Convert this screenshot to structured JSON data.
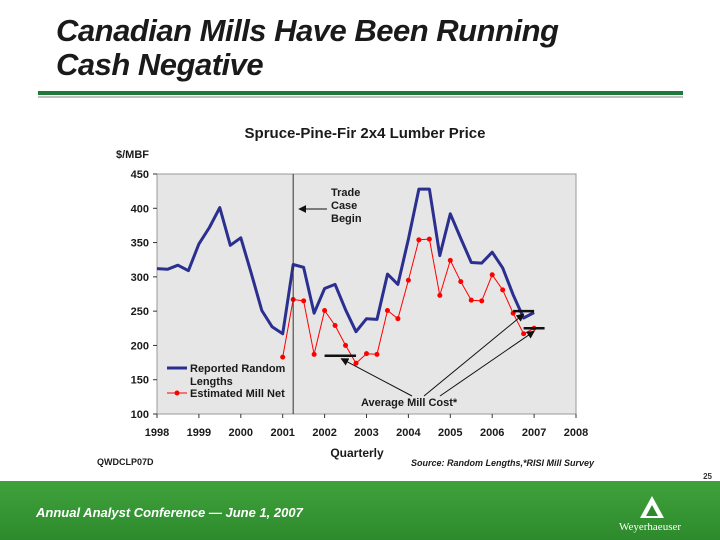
{
  "slide": {
    "title_line1": "Canadian Mills Have Been Running",
    "title_line2": "Cash Negative",
    "code": "QWDCLP07D",
    "source": "Source: Random Lengths,*RISI Mill Survey",
    "page_number": "25",
    "footer": "Annual Analyst Conference — June 1, 2007",
    "logo_text": "Weyerhaeuser",
    "colors": {
      "accent": "#2e8b2e",
      "series_reported": "#2b2f8f",
      "series_net": "#ff0000"
    }
  },
  "chart_data": {
    "type": "line",
    "title": "Spruce-Pine-Fir 2x4 Lumber Price",
    "ylabel": "$/MBF",
    "xlabel": "Quarterly",
    "ylim": [
      100,
      450
    ],
    "xlim": [
      1998,
      2008
    ],
    "yticks": [
      "100",
      "150",
      "200",
      "250",
      "300",
      "350",
      "400",
      "450"
    ],
    "xticks": [
      "1998",
      "1999",
      "2000",
      "2001",
      "2002",
      "2003",
      "2004",
      "2005",
      "2006",
      "2007",
      "2008"
    ],
    "grid": false,
    "legend_position": "bottom-left",
    "series": [
      {
        "name": "Reported Random Lengths",
        "color": "#2b2f8f",
        "x": [
          1998.0,
          1998.25,
          1998.5,
          1998.75,
          1999.0,
          1999.25,
          1999.5,
          1999.75,
          2000.0,
          2000.25,
          2000.5,
          2000.75,
          2001.0,
          2001.25,
          2001.5,
          2001.75,
          2002.0,
          2002.25,
          2002.5,
          2002.75,
          2003.0,
          2003.25,
          2003.5,
          2003.75,
          2004.0,
          2004.25,
          2004.5,
          2004.75,
          2005.0,
          2005.25,
          2005.5,
          2005.75,
          2006.0,
          2006.25,
          2006.5,
          2006.75,
          2007.0
        ],
        "values": [
          312,
          311,
          317,
          309,
          348,
          372,
          401,
          346,
          357,
          305,
          251,
          227,
          217,
          318,
          314,
          247,
          283,
          289,
          252,
          220,
          239,
          238,
          304,
          289,
          355,
          428,
          428,
          331,
          392,
          356,
          321,
          320,
          336,
          313,
          274,
          240,
          248
        ]
      },
      {
        "name": "Estimated Mill Net",
        "color": "#ff0000",
        "x": [
          2001.0,
          2001.25,
          2001.5,
          2001.75,
          2002.0,
          2002.25,
          2002.5,
          2002.75,
          2003.0,
          2003.25,
          2003.5,
          2003.75,
          2004.0,
          2004.25,
          2004.5,
          2004.75,
          2005.0,
          2005.25,
          2005.5,
          2005.75,
          2006.0,
          2006.25,
          2006.5,
          2006.75,
          2007.0
        ],
        "values": [
          183,
          267,
          265,
          187,
          251,
          229,
          200,
          174,
          188,
          187,
          251,
          239,
          295,
          354,
          355,
          273,
          324,
          293,
          266,
          265,
          303,
          281,
          247,
          217,
          225
        ]
      }
    ],
    "avg_mill_cost": [
      {
        "x": [
          2002.0,
          2002.75
        ],
        "value": 185
      },
      {
        "x": [
          2006.5,
          2007.0
        ],
        "value": 250
      },
      {
        "x": [
          2006.75,
          2007.25
        ],
        "value": 225
      }
    ],
    "annotations": {
      "trade_case": "Trade\nCase\nBegin",
      "trade_case_x": 2001.25,
      "avg_mill_cost": "Average Mill Cost*"
    }
  }
}
